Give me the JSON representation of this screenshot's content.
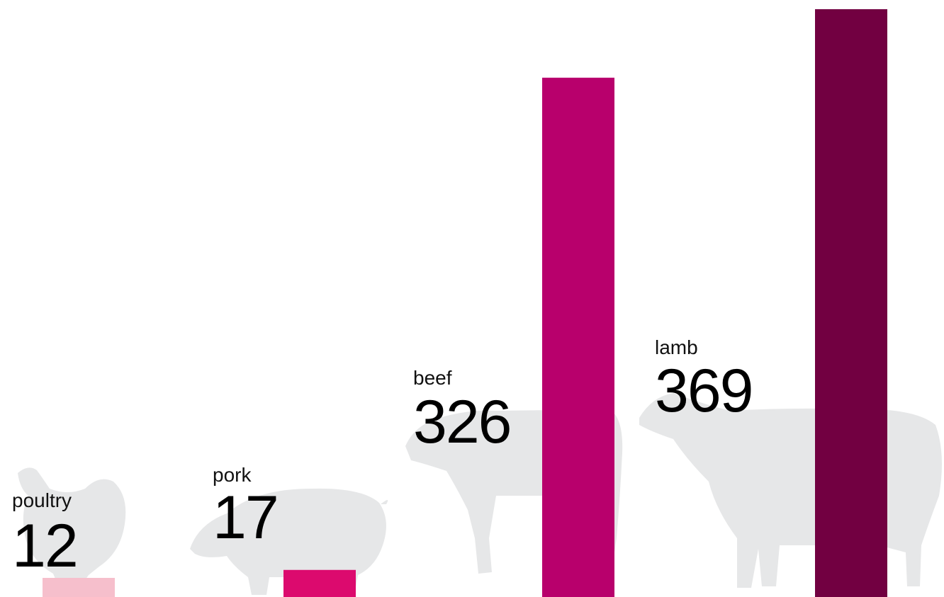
{
  "chart_data": {
    "type": "bar",
    "categories": [
      "poultry",
      "pork",
      "beef",
      "lamb"
    ],
    "values": [
      12,
      17,
      326,
      369
    ],
    "colors": [
      "#f6bfcc",
      "#dc0a6e",
      "#b8006c",
      "#720041"
    ],
    "ylim": [
      0,
      369
    ]
  }
}
